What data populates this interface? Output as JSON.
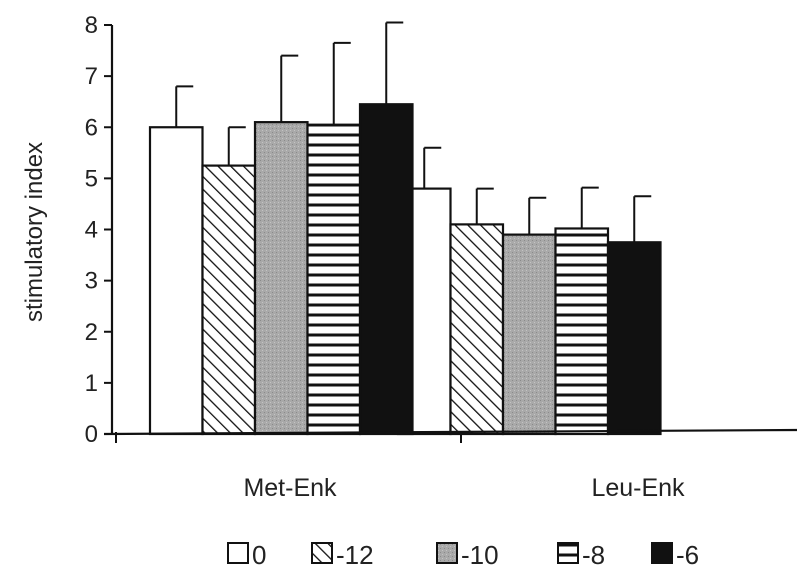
{
  "chart_data": {
    "type": "bar",
    "title": "",
    "xlabel": "",
    "ylabel": "stimulatory index",
    "ylim": [
      0,
      8
    ],
    "yticks": [
      "0",
      "1",
      "2",
      "3",
      "4",
      "5",
      "6",
      "7",
      "8"
    ],
    "categories": [
      "Met-Enk",
      "Leu-Enk"
    ],
    "grid": false,
    "legend_position": "bottom",
    "error_bars": "upper",
    "series": [
      {
        "name": "0",
        "pattern": "white",
        "values": [
          6.0,
          4.8
        ],
        "errors": [
          0.8,
          0.8
        ]
      },
      {
        "name": "-12",
        "pattern": "diagonal",
        "values": [
          5.25,
          4.1
        ],
        "errors": [
          0.75,
          0.7
        ]
      },
      {
        "name": "-10",
        "pattern": "gray",
        "values": [
          6.1,
          3.9
        ],
        "errors": [
          1.3,
          0.72
        ]
      },
      {
        "name": "-8",
        "pattern": "horizontal",
        "values": [
          6.05,
          4.02
        ],
        "errors": [
          1.6,
          0.8
        ]
      },
      {
        "name": "-6",
        "pattern": "black",
        "values": [
          6.45,
          3.75
        ],
        "errors": [
          1.6,
          0.9
        ]
      }
    ]
  }
}
